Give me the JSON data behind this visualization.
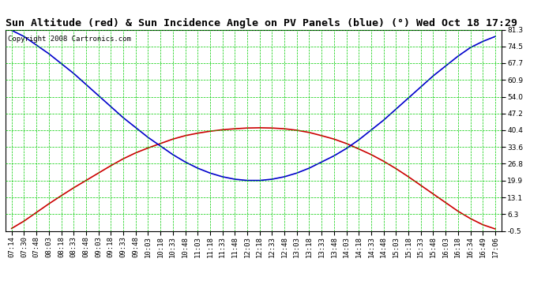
{
  "title": "Sun Altitude (red) & Sun Incidence Angle on PV Panels (blue) (°) Wed Oct 18 17:29",
  "copyright": "Copyright 2008 Cartronics.com",
  "background_color": "#ffffff",
  "plot_background": "#ffffff",
  "grid_color": "#00cc00",
  "line_color_red": "#cc0000",
  "line_color_blue": "#0000cc",
  "ylim": [
    -0.5,
    81.3
  ],
  "yticks": [
    -0.5,
    6.3,
    13.1,
    19.9,
    26.8,
    33.6,
    40.4,
    47.2,
    54.0,
    60.9,
    67.7,
    74.5,
    81.3
  ],
  "x_labels": [
    "07:14",
    "07:30",
    "07:48",
    "08:03",
    "08:18",
    "08:33",
    "08:48",
    "09:03",
    "09:18",
    "09:33",
    "09:48",
    "10:03",
    "10:18",
    "10:33",
    "10:48",
    "11:03",
    "11:18",
    "11:33",
    "11:48",
    "12:03",
    "12:18",
    "12:33",
    "12:48",
    "13:03",
    "13:18",
    "13:33",
    "13:48",
    "14:03",
    "14:18",
    "14:33",
    "14:48",
    "15:03",
    "15:18",
    "15:33",
    "15:48",
    "16:03",
    "16:18",
    "16:34",
    "16:49",
    "17:06"
  ],
  "red_values": [
    0.5,
    3.5,
    7.0,
    10.5,
    13.8,
    17.0,
    20.0,
    23.0,
    26.0,
    28.8,
    31.2,
    33.2,
    35.0,
    36.8,
    38.2,
    39.2,
    40.0,
    40.6,
    41.0,
    41.3,
    41.4,
    41.3,
    41.0,
    40.4,
    39.5,
    38.2,
    36.8,
    35.0,
    32.8,
    30.5,
    27.8,
    24.8,
    21.5,
    18.0,
    14.5,
    11.0,
    7.5,
    4.5,
    2.0,
    0.3
  ],
  "blue_values": [
    81.0,
    78.5,
    75.0,
    71.5,
    67.5,
    63.5,
    59.0,
    54.5,
    50.0,
    45.5,
    41.5,
    37.5,
    34.0,
    30.5,
    27.5,
    25.0,
    23.0,
    21.5,
    20.5,
    20.0,
    20.0,
    20.5,
    21.5,
    23.0,
    25.0,
    27.5,
    30.0,
    33.0,
    36.5,
    40.5,
    44.5,
    49.0,
    53.5,
    58.0,
    62.5,
    66.5,
    70.5,
    74.0,
    76.5,
    78.5
  ],
  "title_fontsize": 9.5,
  "tick_fontsize": 6.5,
  "copyright_fontsize": 6.5,
  "figwidth": 6.9,
  "figheight": 3.75,
  "dpi": 100
}
